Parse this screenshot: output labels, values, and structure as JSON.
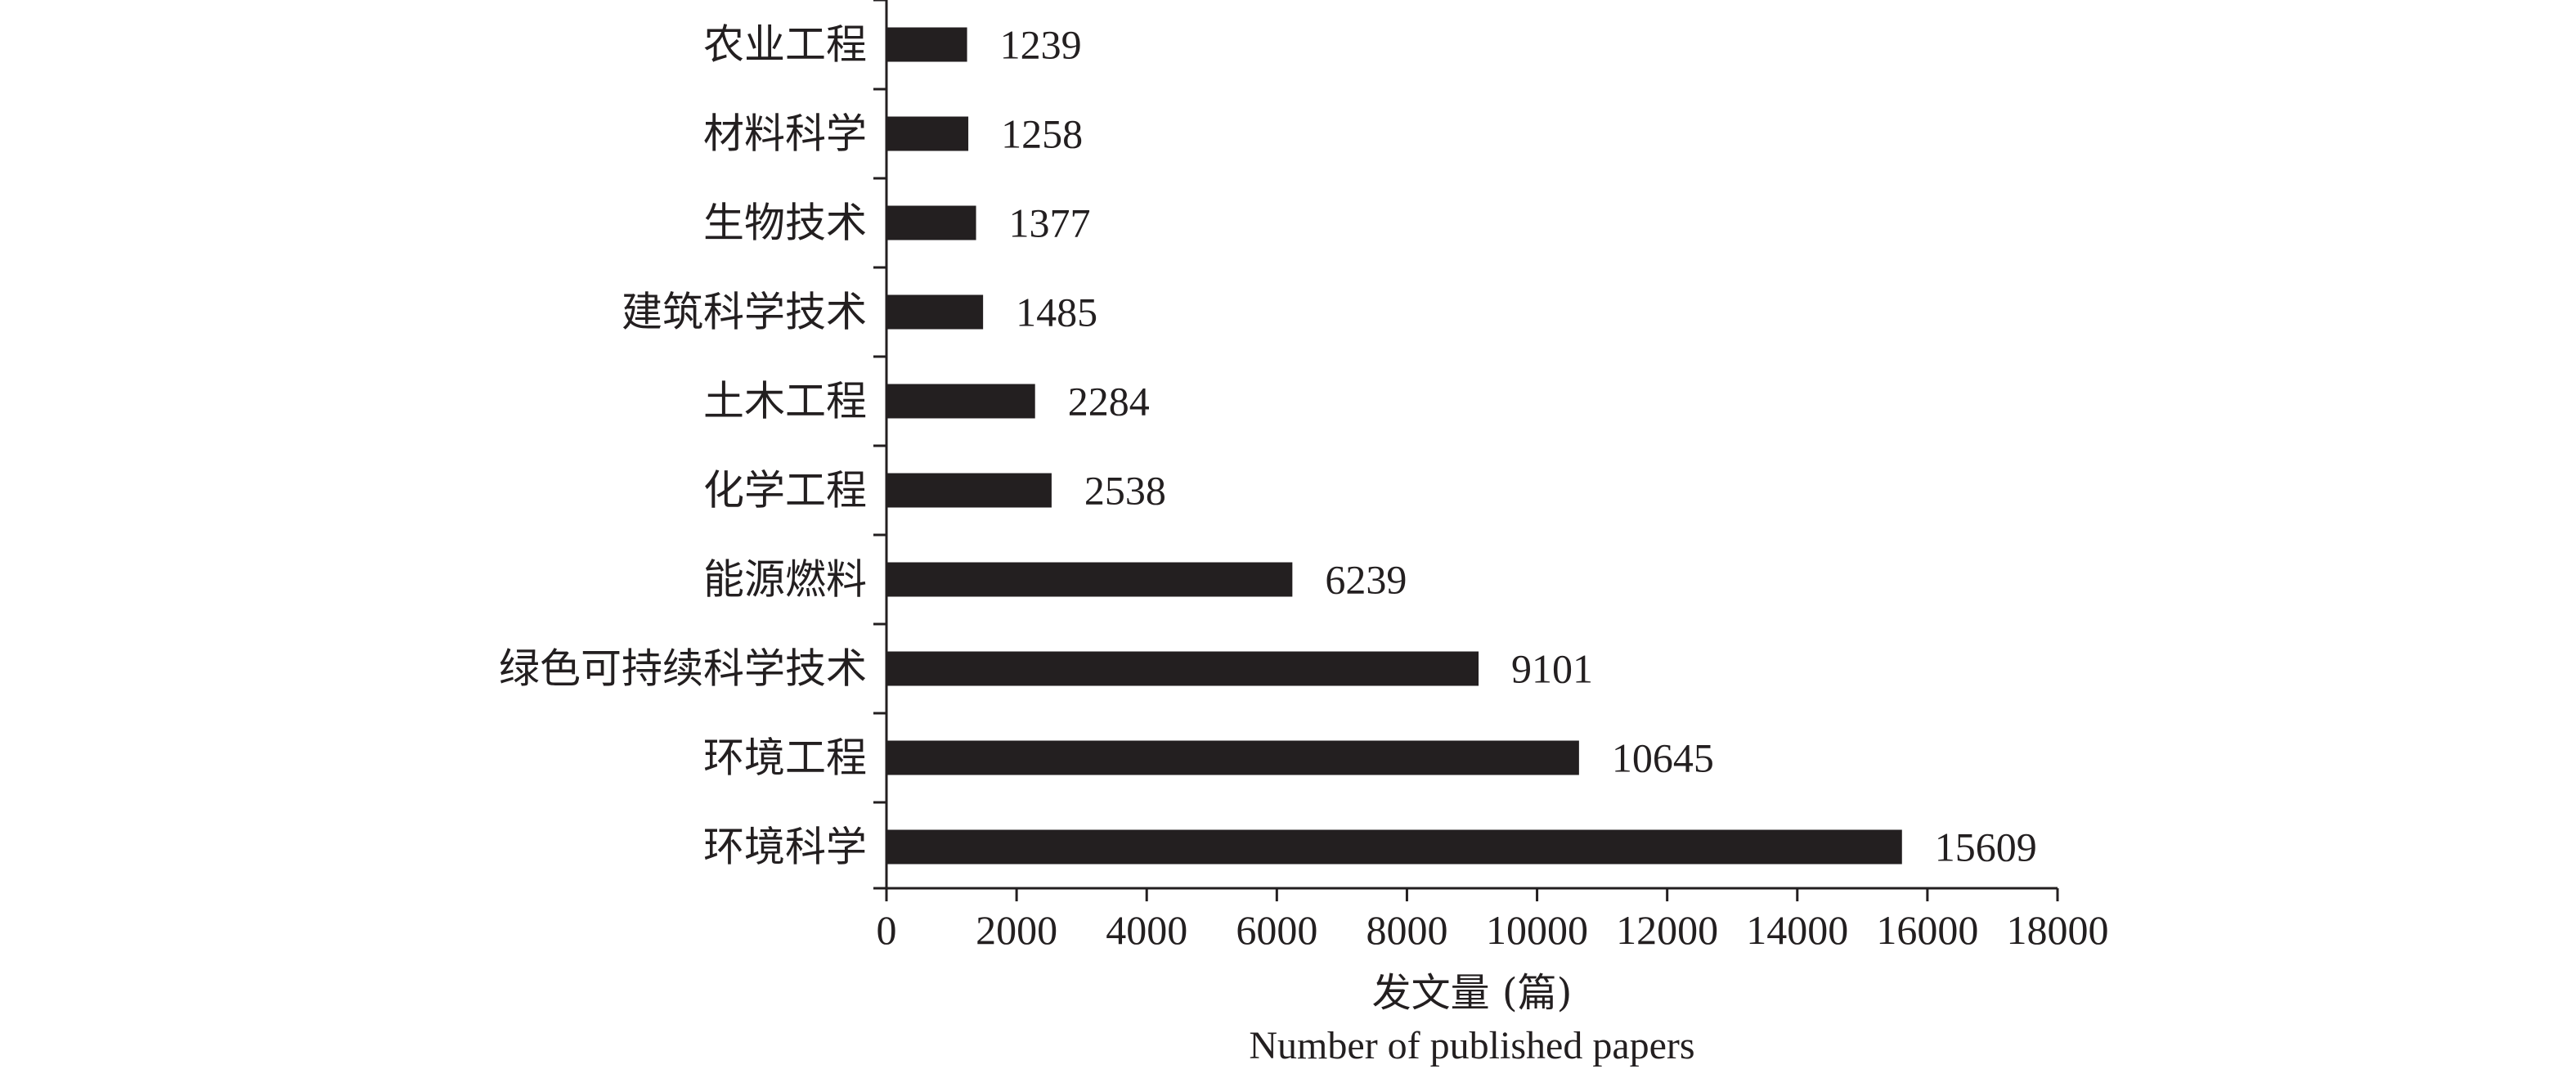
{
  "chart_data": {
    "type": "bar",
    "orientation": "horizontal",
    "categories": [
      "农业工程",
      "材料科学",
      "生物技术",
      "建筑科学技术",
      "土木工程",
      "化学工程",
      "能源燃料",
      "绿色可持续科学技术",
      "环境工程",
      "环境科学"
    ],
    "values": [
      1239,
      1258,
      1377,
      1485,
      2284,
      2538,
      6239,
      9101,
      10645,
      15609
    ],
    "value_labels": [
      "1239",
      "1258",
      "1377",
      "1485",
      "2284",
      "2538",
      "6239",
      "9101",
      "10645",
      "15609"
    ],
    "xlabel": "发文量 (篇)",
    "xlabel_en": "Number of published papers",
    "ylabel": "",
    "xlim": [
      0,
      18000
    ],
    "x_ticks": [
      0,
      2000,
      4000,
      6000,
      8000,
      10000,
      12000,
      14000,
      16000,
      18000
    ],
    "x_tick_labels": [
      "0",
      "2000",
      "4000",
      "6000",
      "8000",
      "10000",
      "12000",
      "14000",
      "16000",
      "18000"
    ],
    "grid": false,
    "legend": "none",
    "bar_color": "#231f20"
  }
}
